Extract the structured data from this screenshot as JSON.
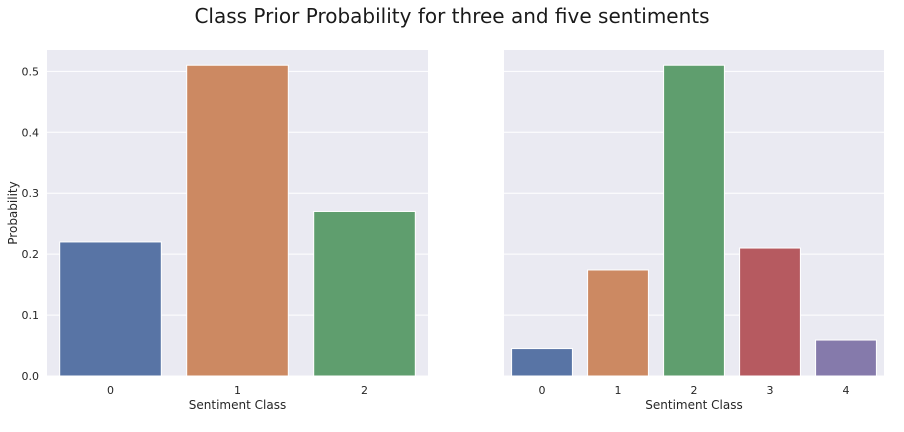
{
  "figure": {
    "title": "Class Prior Probability for three and five sentiments"
  },
  "chart_data": [
    {
      "type": "bar",
      "categories": [
        "0",
        "1",
        "2"
      ],
      "values": [
        0.22,
        0.51,
        0.27
      ],
      "colors": [
        "#5874a5",
        "#cc8962",
        "#5f9e6e"
      ],
      "xlabel": "Sentiment Class",
      "ylabel": "Probability",
      "ylim": [
        0,
        0.535
      ],
      "yticks": [
        0.0,
        0.1,
        0.2,
        0.3,
        0.4,
        0.5
      ],
      "ytick_labels": [
        "0.0",
        "0.1",
        "0.2",
        "0.3",
        "0.4",
        "0.5"
      ],
      "grid": true,
      "background": "#eaeaf2"
    },
    {
      "type": "bar",
      "categories": [
        "0",
        "1",
        "2",
        "3",
        "4"
      ],
      "values": [
        0.045,
        0.174,
        0.51,
        0.21,
        0.059
      ],
      "colors": [
        "#5874a5",
        "#cc8962",
        "#5f9e6e",
        "#b65a60",
        "#857aab"
      ],
      "xlabel": "Sentiment Class",
      "ylabel": "",
      "ylim": [
        0,
        0.535
      ],
      "yticks": [
        0.0,
        0.1,
        0.2,
        0.3,
        0.4,
        0.5
      ],
      "grid": true,
      "background": "#eaeaf2"
    }
  ]
}
